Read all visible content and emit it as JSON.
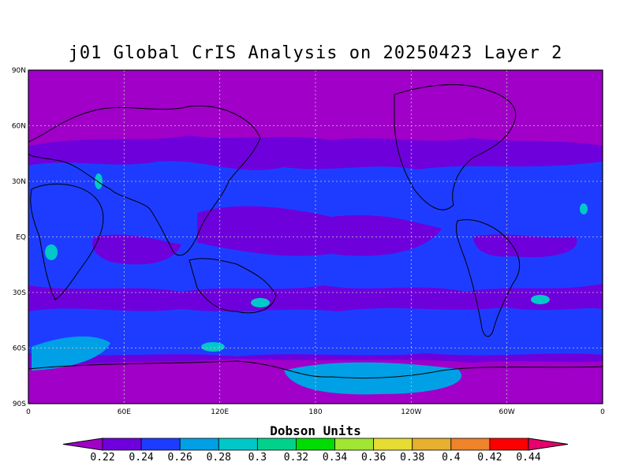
{
  "title": "j01 Global CrIS Analysis on 20250423 Layer 2",
  "lat_labels": [
    "90N",
    "60N",
    "30N",
    "EQ",
    "30S",
    "60S",
    "90S"
  ],
  "lon_labels": [
    "0",
    "60E",
    "120E",
    "180",
    "120W",
    "60W",
    "0"
  ],
  "colorbar": {
    "title": "Dobson Units",
    "ticks": [
      "0.22",
      "0.24",
      "0.26",
      "0.28",
      "0.3",
      "0.32",
      "0.34",
      "0.36",
      "0.38",
      "0.4",
      "0.42",
      "0.44"
    ],
    "colors": [
      "#a000c8",
      "#6e00dc",
      "#1e3cff",
      "#00a0e6",
      "#00c8c8",
      "#00d28c",
      "#00dc00",
      "#a0e632",
      "#e6dc32",
      "#e6af2d",
      "#f08228",
      "#fa0000",
      "#e6006e"
    ]
  },
  "colors": {
    "polar_band": "#a000c8",
    "mid_band": "#6e00dc",
    "tropics": "#1e3cff",
    "antarctic": "#00a0e6"
  }
}
